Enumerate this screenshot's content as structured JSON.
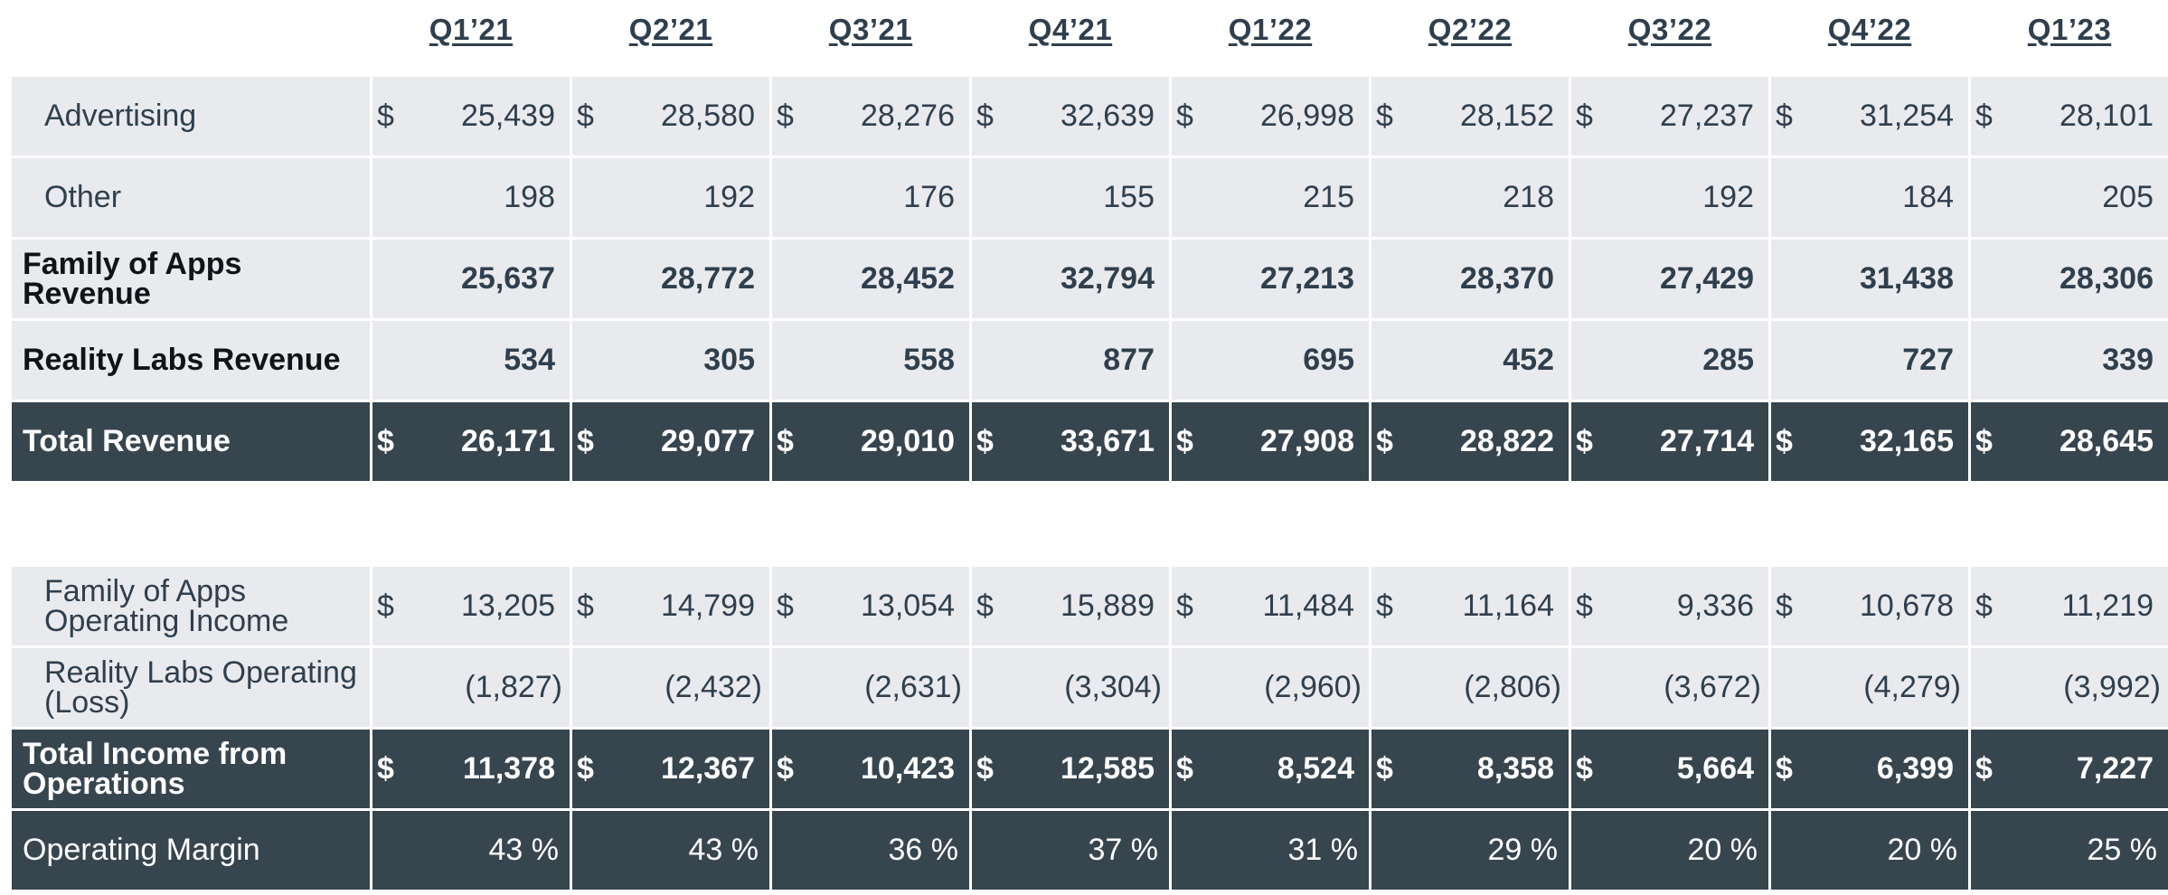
{
  "quarters": [
    "Q1’21",
    "Q2’21",
    "Q3’21",
    "Q4’21",
    "Q1’22",
    "Q2’22",
    "Q3’22",
    "Q4’22",
    "Q1’23"
  ],
  "revenue": {
    "advertising": {
      "label": "Advertising",
      "values": [
        "25,439",
        "28,580",
        "28,276",
        "32,639",
        "26,998",
        "28,152",
        "27,237",
        "31,254",
        "28,101"
      ]
    },
    "other": {
      "label": "Other",
      "values": [
        "198",
        "192",
        "176",
        "155",
        "215",
        "218",
        "192",
        "184",
        "205"
      ]
    },
    "family_of_apps": {
      "label": "Family of Apps Revenue",
      "values": [
        "25,637",
        "28,772",
        "28,452",
        "32,794",
        "27,213",
        "28,370",
        "27,429",
        "31,438",
        "28,306"
      ]
    },
    "reality_labs": {
      "label": "Reality Labs Revenue",
      "values": [
        "534",
        "305",
        "558",
        "877",
        "695",
        "452",
        "285",
        "727",
        "339"
      ]
    },
    "total": {
      "label": "Total Revenue",
      "values": [
        "26,171",
        "29,077",
        "29,010",
        "33,671",
        "27,908",
        "28,822",
        "27,714",
        "32,165",
        "28,645"
      ]
    }
  },
  "income": {
    "family_of_apps": {
      "label": "Family of Apps Operating Income",
      "values": [
        "13,205",
        "14,799",
        "13,054",
        "15,889",
        "11,484",
        "11,164",
        "9,336",
        "10,678",
        "11,219"
      ]
    },
    "reality_labs": {
      "label": "Reality Labs Operating (Loss)",
      "values": [
        "(1,827)",
        "(2,432)",
        "(2,631)",
        "(3,304)",
        "(2,960)",
        "(2,806)",
        "(3,672)",
        "(4,279)",
        "(3,992)"
      ]
    },
    "total": {
      "label": "Total Income from Operations",
      "values": [
        "11,378",
        "12,367",
        "10,423",
        "12,585",
        "8,524",
        "8,358",
        "5,664",
        "6,399",
        "7,227"
      ]
    },
    "margin": {
      "label": "Operating Margin",
      "values": [
        "43 %",
        "43 %",
        "36 %",
        "37 %",
        "31 %",
        "29 %",
        "20 %",
        "20 %",
        "25 %"
      ]
    }
  },
  "currency_symbol": "$",
  "colors": {
    "dark_row": "#37454f",
    "light_row": "#e9eaed",
    "text": "#2f3f4d"
  }
}
